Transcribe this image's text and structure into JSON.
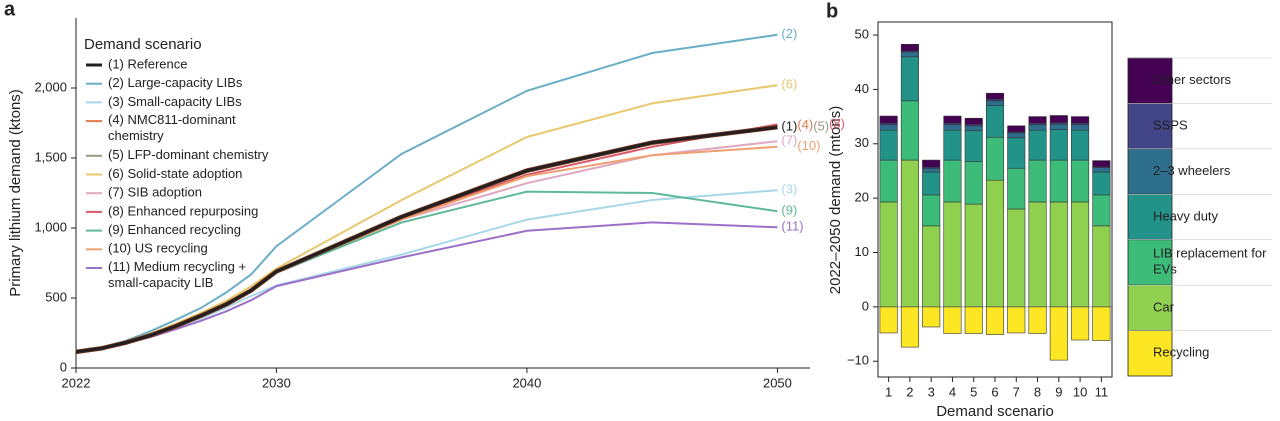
{
  "chart_data": [
    {
      "type": "line",
      "panel": "a",
      "ylabel": "Primary lithium demand (ktons)",
      "legend_title": "Demand scenario",
      "legend": "upper left",
      "x": [
        2022,
        2023,
        2024,
        2025,
        2026,
        2027,
        2028,
        2029,
        2030,
        2035,
        2040,
        2045,
        2050
      ],
      "xlim": [
        2022,
        2051.3
      ],
      "xticks": [
        2022,
        2030,
        2040,
        2050
      ],
      "ylim": [
        0,
        2500
      ],
      "yticks": [
        0,
        500,
        {
          "value": 1000,
          "label": "1,000"
        },
        {
          "value": 1500,
          "label": "1,500"
        },
        {
          "value": 2000,
          "label": "2,000"
        }
      ],
      "series": [
        {
          "name": "(1) Reference",
          "end_label": "(1)",
          "color": "#231f20",
          "values": [
            115,
            140,
            182,
            235,
            300,
            375,
            455,
            555,
            690,
            1080,
            1410,
            1610,
            1720
          ]
        },
        {
          "name": "(2) Large-capacity LIBs",
          "end_label": "(2)",
          "color": "#6aaec6",
          "values": [
            115,
            145,
            195,
            265,
            345,
            430,
            540,
            670,
            870,
            1530,
            1980,
            2250,
            2380
          ]
        },
        {
          "name": "(3) Small-capacity LIBs",
          "end_label": "(3)",
          "color": "#a8d8e8",
          "values": [
            115,
            140,
            178,
            228,
            288,
            355,
            432,
            515,
            590,
            810,
            1060,
            1200,
            1270
          ]
        },
        {
          "name": "(4) NMC811-dominant chemistry",
          "end_label": "(4)",
          "color": "#e07a50",
          "values": [
            115,
            140,
            182,
            236,
            302,
            378,
            458,
            560,
            695,
            1085,
            1400,
            1600,
            1730
          ]
        },
        {
          "name": "(5) LFP-dominant chemistry",
          "end_label": "(5)",
          "color": "#9a9a80",
          "values": [
            115,
            140,
            182,
            235,
            300,
            375,
            455,
            555,
            690,
            1075,
            1400,
            1600,
            1720
          ]
        },
        {
          "name": "(6) Solid-state adoption",
          "end_label": "(6)",
          "color": "#e8c86e",
          "values": [
            115,
            142,
            190,
            248,
            318,
            395,
            480,
            585,
            710,
            1200,
            1650,
            1890,
            2020
          ]
        },
        {
          "name": "(7) SIB adoption",
          "end_label": "(7)",
          "color": "#e0a8c0",
          "values": [
            115,
            140,
            182,
            235,
            300,
            375,
            455,
            555,
            690,
            1060,
            1320,
            1520,
            1620
          ]
        },
        {
          "name": "(8) Enhanced repurposing",
          "end_label": "(8)",
          "color": "#d85a6a",
          "values": [
            115,
            140,
            182,
            235,
            300,
            375,
            455,
            555,
            690,
            1070,
            1380,
            1580,
            1740
          ]
        },
        {
          "name": "(9) Enhanced recycling",
          "end_label": "(9)",
          "color": "#5fb89a",
          "values": [
            115,
            140,
            182,
            235,
            300,
            372,
            450,
            550,
            680,
            1040,
            1260,
            1250,
            1120
          ]
        },
        {
          "name": "(10) US recycling",
          "end_label": "(10)",
          "color": "#f0a070",
          "values": [
            115,
            140,
            182,
            235,
            300,
            375,
            455,
            555,
            690,
            1060,
            1370,
            1520,
            1580
          ]
        },
        {
          "name": "(11) Medium recycling + small-capacity LIB",
          "end_label": "(11)",
          "color": "#9a70c8",
          "values": [
            115,
            138,
            175,
            222,
            278,
            338,
            405,
            485,
            585,
            790,
            980,
            1040,
            1005
          ]
        }
      ]
    },
    {
      "type": "bar",
      "stacked": true,
      "panel": "b",
      "xlabel": "Demand scenario",
      "ylabel": "2022–2050 demand (mtons)",
      "legend": "right",
      "categories": [
        "1",
        "2",
        "3",
        "4",
        "5",
        "6",
        "7",
        "8",
        "9",
        "10",
        "11"
      ],
      "ylim": [
        -12.9,
        52.4
      ],
      "yticks": [
        {
          "value": -10,
          "label": "−10"
        },
        0,
        10,
        20,
        30,
        40,
        50
      ],
      "series": [
        {
          "name": "Car",
          "color": "#8fd14f",
          "values": [
            19.3,
            27.0,
            14.9,
            19.3,
            18.9,
            23.3,
            18.0,
            19.3,
            19.3,
            19.3,
            14.9
          ]
        },
        {
          "name": "LIB replacement for EVs",
          "color": "#3dbb78",
          "values": [
            7.7,
            10.9,
            5.7,
            7.7,
            7.8,
            7.9,
            7.5,
            7.7,
            7.7,
            7.7,
            5.7
          ]
        },
        {
          "name": "Heavy duty",
          "color": "#23938a",
          "values": [
            5.5,
            8.1,
            4.2,
            5.5,
            5.7,
            5.8,
            5.6,
            5.5,
            5.6,
            5.5,
            4.2
          ]
        },
        {
          "name": "2–3 wheelers",
          "color": "#2f6f8e",
          "values": [
            1.0,
            0.9,
            0.7,
            1.0,
            0.9,
            0.9,
            0.9,
            1.0,
            1.0,
            1.0,
            0.8
          ]
        },
        {
          "name": "SSPS",
          "color": "#414487",
          "values": [
            0.3,
            0.2,
            0.2,
            0.3,
            0.3,
            0.3,
            0.2,
            0.3,
            0.3,
            0.3,
            0.2
          ]
        },
        {
          "name": "Other sectors",
          "color": "#440154",
          "values": [
            1.3,
            1.2,
            1.3,
            1.3,
            1.1,
            1.1,
            1.1,
            1.2,
            1.3,
            1.2,
            1.1
          ]
        },
        {
          "name": "Recycling",
          "color": "#fde725",
          "values": [
            -4.8,
            -7.4,
            -3.7,
            -4.9,
            -4.9,
            -5.1,
            -4.8,
            -4.9,
            -9.8,
            -6.1,
            -6.2
          ]
        }
      ]
    }
  ]
}
